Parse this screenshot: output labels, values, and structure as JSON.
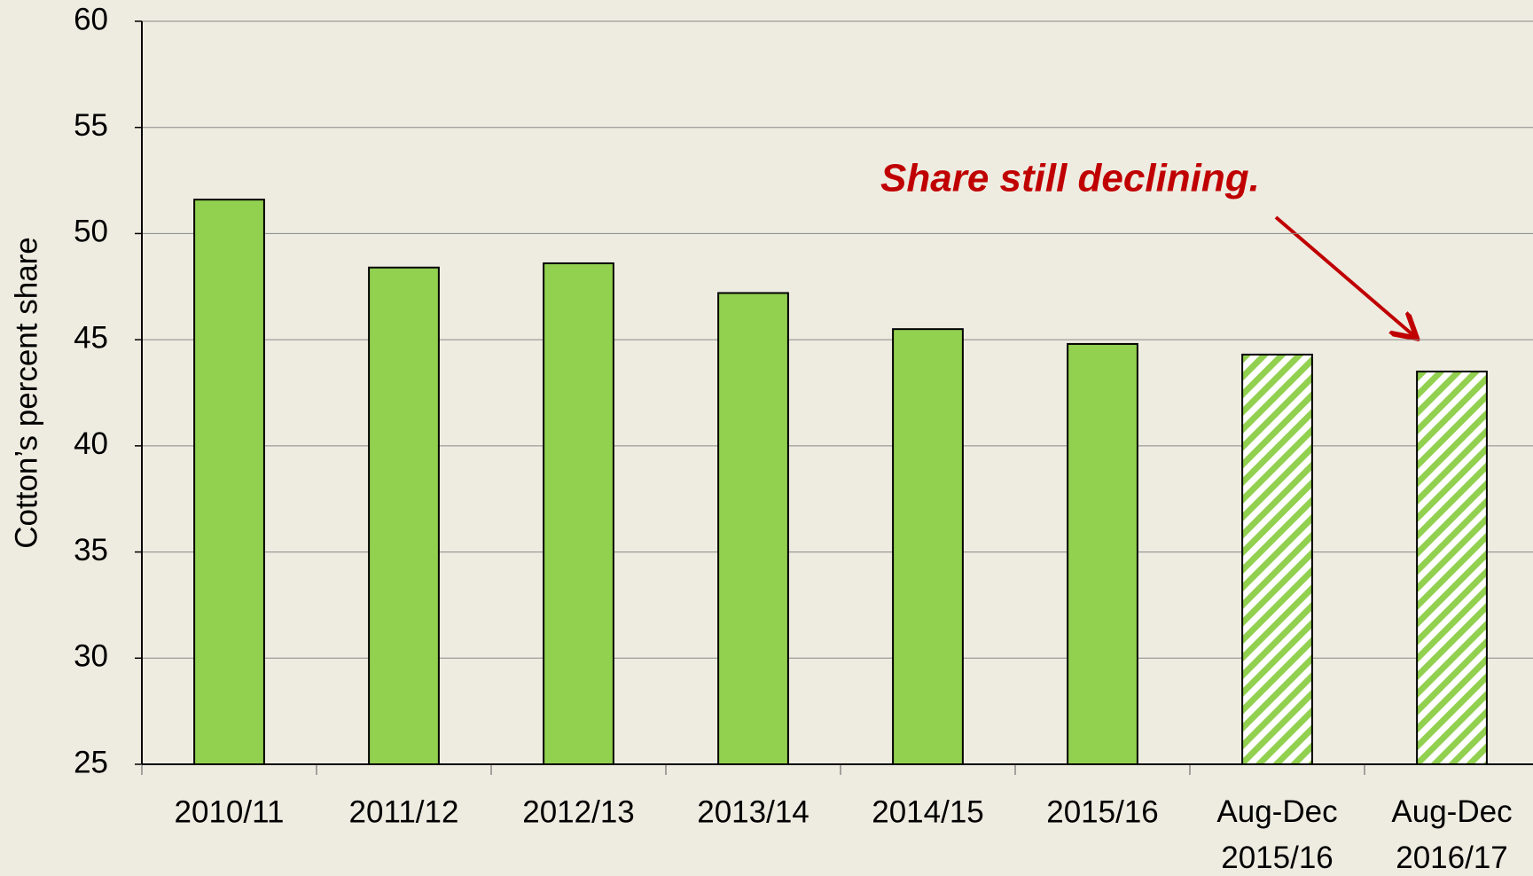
{
  "chart_data": {
    "type": "bar",
    "y_label": "Cotton’s percent share",
    "annotation": "Share still declining.",
    "categories": [
      "2010/11",
      "2011/12",
      "2012/13",
      "2013/14",
      "2014/15",
      "2015/16",
      "Aug-Dec 2015/16",
      "Aug-Dec 2016/17"
    ],
    "values": [
      51.6,
      48.4,
      48.6,
      47.2,
      45.5,
      44.8,
      44.3,
      43.5
    ],
    "patterns": [
      "solid",
      "solid",
      "solid",
      "solid",
      "solid",
      "solid",
      "hatched",
      "hatched"
    ],
    "color": "#92d050",
    "ylim": [
      25,
      60
    ],
    "yticks": [
      25,
      30,
      35,
      40,
      45,
      50,
      55,
      60
    ],
    "grid": true
  }
}
